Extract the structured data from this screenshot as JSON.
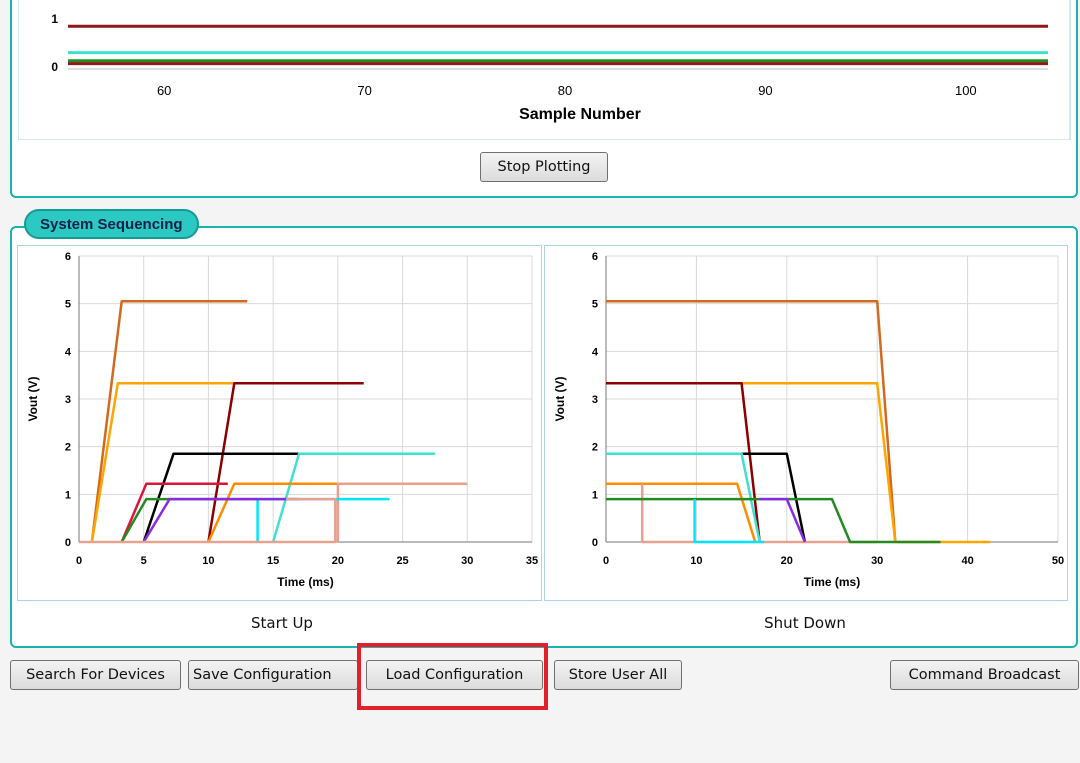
{
  "top_chart": {
    "xlabel": "Sample Number",
    "xticks": [
      60,
      70,
      80,
      90,
      100
    ],
    "yticks": [
      0,
      1
    ],
    "xlim": [
      55.2,
      104.1
    ],
    "series_levels": [
      {
        "color": "#8b1a1a",
        "y": 0.85
      },
      {
        "color": "#40e0d0",
        "y": 0.3
      },
      {
        "color": "#228b22",
        "y": 0.13
      },
      {
        "color": "#8b1a1a",
        "y": 0.07
      }
    ]
  },
  "stop_plotting_label": "Stop Plotting",
  "sequencing": {
    "group_label": "System Sequencing",
    "startup": {
      "caption": "Start Up",
      "xlabel": "Time (ms)",
      "ylabel": "Vout (V)",
      "xticks": [
        0,
        5,
        10,
        15,
        20,
        25,
        30,
        35
      ],
      "yticks": [
        0,
        1,
        2,
        3,
        4,
        5,
        6
      ],
      "xlim": [
        0,
        35
      ],
      "ylim": [
        0,
        6
      ]
    },
    "shutdown": {
      "caption": "Shut Down",
      "xlabel": "Time (ms)",
      "ylabel": "Vout (V)",
      "xticks": [
        0,
        10,
        20,
        30,
        40,
        50
      ],
      "yticks": [
        0,
        1,
        2,
        3,
        4,
        5,
        6
      ],
      "xlim": [
        0,
        50
      ],
      "ylim": [
        0,
        6
      ]
    }
  },
  "chart_data": [
    {
      "type": "line",
      "xlabel": "Time (ms)",
      "ylabel": "Vout (V)",
      "xlim": [
        0,
        35
      ],
      "ylim": [
        0,
        6
      ],
      "series": [
        {
          "color": "#d2691e",
          "points": [
            [
              1,
              0
            ],
            [
              3.3,
              5.05
            ],
            [
              13,
              5.05
            ]
          ]
        },
        {
          "color": "#ffa500",
          "points": [
            [
              1,
              0
            ],
            [
              3,
              3.33
            ],
            [
              12,
              3.33
            ]
          ]
        },
        {
          "color": "#8b0000",
          "points": [
            [
              10,
              0
            ],
            [
              12,
              3.33
            ],
            [
              22,
              3.33
            ]
          ]
        },
        {
          "color": "#000000",
          "points": [
            [
              5,
              0
            ],
            [
              7.3,
              1.85
            ],
            [
              17.5,
              1.85
            ]
          ]
        },
        {
          "color": "#40e0d0",
          "points": [
            [
              15,
              0
            ],
            [
              17,
              1.85
            ],
            [
              27.5,
              1.85
            ]
          ]
        },
        {
          "color": "#dc143c",
          "points": [
            [
              3.3,
              0
            ],
            [
              5.2,
              1.22
            ],
            [
              11.5,
              1.22
            ]
          ]
        },
        {
          "color": "#ff8c00",
          "points": [
            [
              10,
              0
            ],
            [
              12,
              1.22
            ],
            [
              22,
              1.22
            ]
          ]
        },
        {
          "color": "#e9a18f",
          "points": [
            [
              20,
              0
            ],
            [
              20,
              1.22
            ],
            [
              30,
              1.22
            ]
          ]
        },
        {
          "color": "#228b22",
          "points": [
            [
              3.3,
              0
            ],
            [
              5.2,
              0.9
            ],
            [
              13.8,
              0.9
            ]
          ]
        },
        {
          "color": "#00e5ff",
          "points": [
            [
              13.8,
              0
            ],
            [
              13.8,
              0.9
            ],
            [
              24,
              0.9
            ]
          ]
        },
        {
          "color": "#8a2be2",
          "points": [
            [
              5,
              0
            ],
            [
              7,
              0.9
            ],
            [
              17,
              0.9
            ]
          ]
        },
        {
          "color": "#e9a18f",
          "points": [
            [
              0,
              0
            ],
            [
              19.8,
              0
            ],
            [
              19.8,
              0.9
            ],
            [
              16,
              0.9
            ]
          ]
        }
      ]
    },
    {
      "type": "line",
      "xlabel": "Time (ms)",
      "ylabel": "Vout (V)",
      "xlim": [
        0,
        50
      ],
      "ylim": [
        0,
        6
      ],
      "series": [
        {
          "color": "#d2691e",
          "points": [
            [
              0,
              5.05
            ],
            [
              30,
              5.05
            ],
            [
              32,
              0
            ]
          ]
        },
        {
          "color": "#ffa500",
          "points": [
            [
              15,
              3.33
            ],
            [
              30,
              3.33
            ],
            [
              32,
              0
            ],
            [
              42.5,
              0
            ]
          ]
        },
        {
          "color": "#8b0000",
          "points": [
            [
              0,
              3.33
            ],
            [
              15,
              3.33
            ],
            [
              17,
              0
            ]
          ]
        },
        {
          "color": "#000000",
          "points": [
            [
              15,
              1.85
            ],
            [
              20,
              1.85
            ],
            [
              22,
              0
            ]
          ]
        },
        {
          "color": "#40e0d0",
          "points": [
            [
              0,
              1.85
            ],
            [
              15,
              1.85
            ],
            [
              17,
              0
            ]
          ]
        },
        {
          "color": "#ff8c00",
          "points": [
            [
              0,
              1.22
            ],
            [
              14.5,
              1.22
            ],
            [
              16.5,
              0
            ]
          ]
        },
        {
          "color": "#e9a18f",
          "points": [
            [
              4,
              1.22
            ],
            [
              4,
              0
            ],
            [
              30,
              0
            ]
          ]
        },
        {
          "color": "#228b22",
          "points": [
            [
              0,
              0.9
            ],
            [
              25,
              0.9
            ],
            [
              27,
              0
            ],
            [
              37,
              0
            ]
          ]
        },
        {
          "color": "#00e5ff",
          "points": [
            [
              9.8,
              0.9
            ],
            [
              9.8,
              0
            ],
            [
              17.5,
              0
            ]
          ]
        },
        {
          "color": "#8a2be2",
          "points": [
            [
              17,
              0.9
            ],
            [
              20,
              0.9
            ],
            [
              22,
              0
            ]
          ]
        }
      ]
    }
  ],
  "buttons": {
    "search": "Search For Devices",
    "save": "Save Configuration",
    "load": "Load Configuration",
    "store": "Store User All",
    "broadcast": "Command Broadcast"
  }
}
